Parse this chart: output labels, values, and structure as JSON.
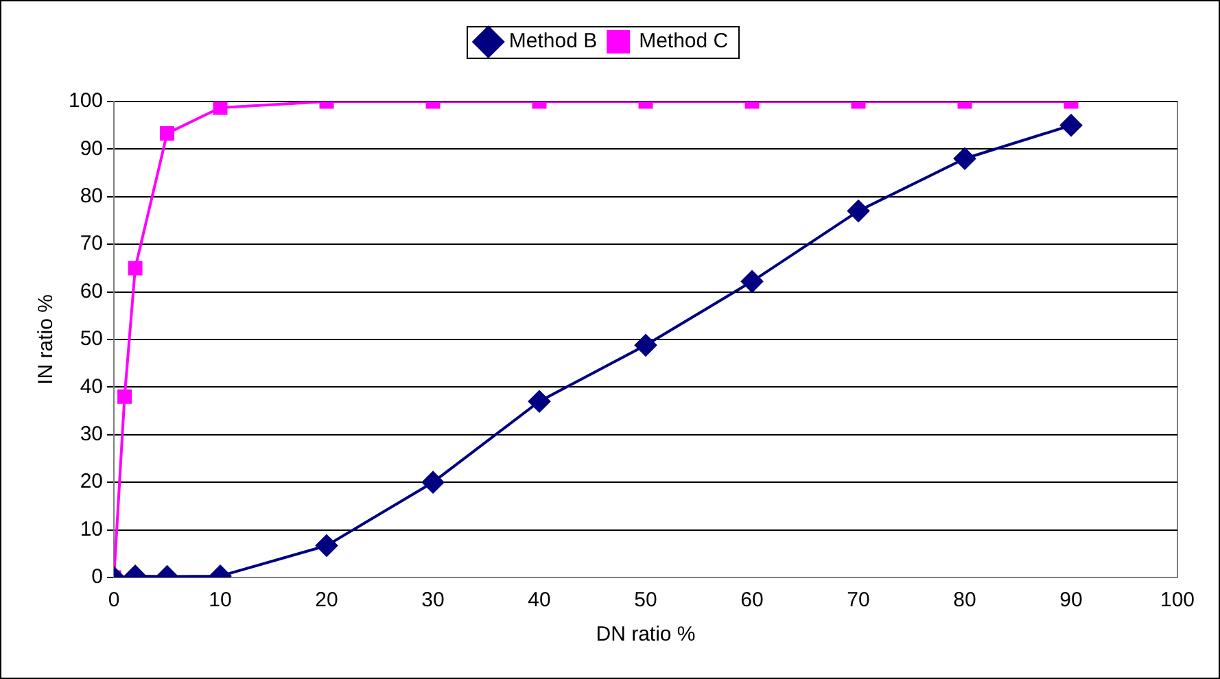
{
  "chart_data": {
    "type": "line",
    "xlabel": "DN ratio %",
    "ylabel": "IN ratio %",
    "xlim": [
      0,
      100
    ],
    "xticks": [
      0,
      10,
      20,
      30,
      40,
      50,
      60,
      70,
      80,
      90,
      100
    ],
    "ylim": [
      0,
      100
    ],
    "yticks": [
      0,
      10,
      20,
      30,
      40,
      50,
      60,
      70,
      80,
      90,
      100
    ],
    "grid": "y",
    "legend": "top",
    "line_style": "solid",
    "series": [
      {
        "name": "Method B",
        "color": "#000080",
        "marker": "diamond",
        "x": [
          0,
          2,
          5,
          10,
          20,
          30,
          40,
          50,
          60,
          70,
          80,
          90
        ],
        "values": [
          0,
          0.3,
          0.2,
          0.3,
          6.7,
          20,
          37,
          48.8,
          62.2,
          77,
          88,
          95
        ]
      },
      {
        "name": "Method C",
        "color": "#ff00ff",
        "marker": "square",
        "x": [
          0,
          1,
          2,
          5,
          10,
          20,
          30,
          40,
          50,
          60,
          70,
          80,
          90
        ],
        "values": [
          0,
          38,
          65,
          93.3,
          98.7,
          100,
          100,
          100,
          100,
          100,
          100,
          100,
          100
        ]
      }
    ]
  }
}
